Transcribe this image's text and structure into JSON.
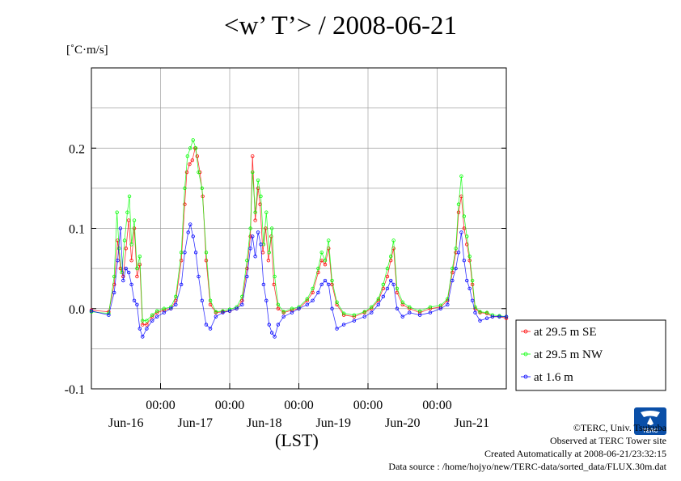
{
  "title": "<w’ T’> / 2008-06-21",
  "unit_label": "[˚C·m/s]",
  "x_axis_label": "(LST)",
  "credits": {
    "copyright": "©TERC, Univ. Tsukuba",
    "observed": "Observed at TERC Tower site",
    "created": "Created Automatically at 2008-06-21/23:32:15",
    "source": "Data source : /home/hojyo/new/TERC-data/sorted_data/FLUX.30m.dat"
  },
  "logo": {
    "text": "TERC",
    "color": "#0a4fa8"
  },
  "colors": {
    "se": "#ff0000",
    "nw": "#00ff00",
    "low": "#0000ff",
    "grid": "#a0a0a0"
  },
  "chart_data": {
    "type": "line",
    "title": "<w’ T’> / 2008-06-21",
    "ylabel": "[˚C·m/s]",
    "xlabel": "(LST)",
    "xlim_days": [
      0,
      6
    ],
    "ylim": [
      -0.1,
      0.3
    ],
    "yticks": [
      -0.1,
      0.0,
      0.1,
      0.2
    ],
    "ytick_labels": [
      "-0.1",
      "0.0",
      "0.1",
      "0.2"
    ],
    "xtick_time_labels": [
      "00:00",
      "00:00",
      "00:00",
      "00:00",
      "00:00"
    ],
    "xtick_date_labels": [
      "Jun-16",
      "Jun-17",
      "Jun-18",
      "Jun-19",
      "Jun-20",
      "Jun-21"
    ],
    "grid": true,
    "legend_position": "right-bottom, outside plot",
    "series": [
      {
        "name": "at 29.5 m SE",
        "points": [
          [
            0.0,
            -0.002
          ],
          [
            0.25,
            -0.004
          ],
          [
            0.33,
            0.03
          ],
          [
            0.38,
            0.085
          ],
          [
            0.42,
            0.05
          ],
          [
            0.46,
            0.04
          ],
          [
            0.5,
            0.075
          ],
          [
            0.54,
            0.11
          ],
          [
            0.58,
            0.06
          ],
          [
            0.62,
            0.1
          ],
          [
            0.66,
            0.04
          ],
          [
            0.7,
            0.055
          ],
          [
            0.74,
            -0.02
          ],
          [
            0.8,
            -0.02
          ],
          [
            0.88,
            -0.01
          ],
          [
            0.95,
            -0.005
          ],
          [
            1.05,
            -0.002
          ],
          [
            1.15,
            0.0
          ],
          [
            1.22,
            0.01
          ],
          [
            1.3,
            0.06
          ],
          [
            1.35,
            0.13
          ],
          [
            1.38,
            0.17
          ],
          [
            1.42,
            0.18
          ],
          [
            1.46,
            0.185
          ],
          [
            1.5,
            0.2
          ],
          [
            1.53,
            0.19
          ],
          [
            1.57,
            0.17
          ],
          [
            1.61,
            0.14
          ],
          [
            1.66,
            0.06
          ],
          [
            1.72,
            0.005
          ],
          [
            1.8,
            -0.005
          ],
          [
            1.9,
            -0.004
          ],
          [
            2.0,
            -0.003
          ],
          [
            2.1,
            0.0
          ],
          [
            2.18,
            0.01
          ],
          [
            2.25,
            0.05
          ],
          [
            2.3,
            0.09
          ],
          [
            2.33,
            0.19
          ],
          [
            2.37,
            0.11
          ],
          [
            2.41,
            0.15
          ],
          [
            2.44,
            0.13
          ],
          [
            2.48,
            0.07
          ],
          [
            2.52,
            0.1
          ],
          [
            2.56,
            0.06
          ],
          [
            2.6,
            0.09
          ],
          [
            2.64,
            0.03
          ],
          [
            2.7,
            0.0
          ],
          [
            2.78,
            -0.005
          ],
          [
            2.9,
            -0.002
          ],
          [
            3.0,
            0.0
          ],
          [
            3.12,
            0.01
          ],
          [
            3.2,
            0.02
          ],
          [
            3.28,
            0.045
          ],
          [
            3.33,
            0.06
          ],
          [
            3.38,
            0.055
          ],
          [
            3.43,
            0.075
          ],
          [
            3.48,
            0.03
          ],
          [
            3.55,
            0.005
          ],
          [
            3.65,
            -0.008
          ],
          [
            3.8,
            -0.01
          ],
          [
            3.95,
            -0.005
          ],
          [
            4.05,
            0.0
          ],
          [
            4.15,
            0.01
          ],
          [
            4.22,
            0.025
          ],
          [
            4.28,
            0.04
          ],
          [
            4.33,
            0.06
          ],
          [
            4.37,
            0.075
          ],
          [
            4.42,
            0.02
          ],
          [
            4.5,
            0.005
          ],
          [
            4.6,
            0.0
          ],
          [
            4.75,
            -0.005
          ],
          [
            4.9,
            0.0
          ],
          [
            5.05,
            0.002
          ],
          [
            5.15,
            0.01
          ],
          [
            5.22,
            0.045
          ],
          [
            5.27,
            0.07
          ],
          [
            5.31,
            0.12
          ],
          [
            5.35,
            0.14
          ],
          [
            5.39,
            0.1
          ],
          [
            5.43,
            0.08
          ],
          [
            5.47,
            0.06
          ],
          [
            5.51,
            0.03
          ],
          [
            5.55,
            0.0
          ],
          [
            5.62,
            -0.005
          ],
          [
            5.72,
            -0.006
          ],
          [
            5.8,
            -0.01
          ],
          [
            5.9,
            -0.01
          ],
          [
            6.0,
            -0.012
          ]
        ]
      },
      {
        "name": "at 29.5 m NW",
        "points": [
          [
            0.0,
            -0.004
          ],
          [
            0.25,
            -0.006
          ],
          [
            0.33,
            0.04
          ],
          [
            0.37,
            0.12
          ],
          [
            0.4,
            0.075
          ],
          [
            0.44,
            0.045
          ],
          [
            0.48,
            0.085
          ],
          [
            0.52,
            0.12
          ],
          [
            0.55,
            0.14
          ],
          [
            0.58,
            0.08
          ],
          [
            0.62,
            0.11
          ],
          [
            0.66,
            0.05
          ],
          [
            0.7,
            0.065
          ],
          [
            0.74,
            -0.015
          ],
          [
            0.8,
            -0.015
          ],
          [
            0.88,
            -0.008
          ],
          [
            0.95,
            -0.003
          ],
          [
            1.05,
            0.0
          ],
          [
            1.15,
            0.002
          ],
          [
            1.22,
            0.015
          ],
          [
            1.3,
            0.07
          ],
          [
            1.35,
            0.15
          ],
          [
            1.39,
            0.19
          ],
          [
            1.43,
            0.2
          ],
          [
            1.47,
            0.21
          ],
          [
            1.51,
            0.2
          ],
          [
            1.55,
            0.17
          ],
          [
            1.6,
            0.15
          ],
          [
            1.66,
            0.07
          ],
          [
            1.72,
            0.01
          ],
          [
            1.8,
            -0.004
          ],
          [
            1.9,
            -0.003
          ],
          [
            2.0,
            -0.001
          ],
          [
            2.1,
            0.002
          ],
          [
            2.18,
            0.015
          ],
          [
            2.25,
            0.06
          ],
          [
            2.3,
            0.1
          ],
          [
            2.33,
            0.17
          ],
          [
            2.37,
            0.12
          ],
          [
            2.41,
            0.16
          ],
          [
            2.45,
            0.14
          ],
          [
            2.49,
            0.08
          ],
          [
            2.53,
            0.12
          ],
          [
            2.57,
            0.07
          ],
          [
            2.61,
            0.1
          ],
          [
            2.65,
            0.04
          ],
          [
            2.7,
            0.005
          ],
          [
            2.78,
            -0.004
          ],
          [
            2.9,
            0.0
          ],
          [
            3.0,
            0.002
          ],
          [
            3.12,
            0.012
          ],
          [
            3.2,
            0.025
          ],
          [
            3.28,
            0.05
          ],
          [
            3.33,
            0.07
          ],
          [
            3.38,
            0.06
          ],
          [
            3.43,
            0.085
          ],
          [
            3.48,
            0.035
          ],
          [
            3.55,
            0.008
          ],
          [
            3.65,
            -0.006
          ],
          [
            3.8,
            -0.008
          ],
          [
            3.95,
            -0.004
          ],
          [
            4.05,
            0.002
          ],
          [
            4.15,
            0.012
          ],
          [
            4.22,
            0.03
          ],
          [
            4.28,
            0.05
          ],
          [
            4.33,
            0.065
          ],
          [
            4.37,
            0.085
          ],
          [
            4.42,
            0.025
          ],
          [
            4.5,
            0.008
          ],
          [
            4.6,
            0.002
          ],
          [
            4.75,
            -0.003
          ],
          [
            4.9,
            0.002
          ],
          [
            5.05,
            0.004
          ],
          [
            5.15,
            0.012
          ],
          [
            5.22,
            0.05
          ],
          [
            5.27,
            0.075
          ],
          [
            5.31,
            0.13
          ],
          [
            5.35,
            0.165
          ],
          [
            5.39,
            0.115
          ],
          [
            5.43,
            0.09
          ],
          [
            5.47,
            0.065
          ],
          [
            5.51,
            0.035
          ],
          [
            5.55,
            0.002
          ],
          [
            5.62,
            -0.004
          ],
          [
            5.72,
            -0.005
          ],
          [
            5.8,
            -0.008
          ],
          [
            5.9,
            -0.009
          ],
          [
            6.0,
            -0.01
          ]
        ]
      },
      {
        "name": "at 1.6 m",
        "points": [
          [
            0.0,
            -0.003
          ],
          [
            0.25,
            -0.008
          ],
          [
            0.33,
            0.02
          ],
          [
            0.38,
            0.06
          ],
          [
            0.42,
            0.1
          ],
          [
            0.46,
            0.035
          ],
          [
            0.5,
            0.05
          ],
          [
            0.54,
            0.045
          ],
          [
            0.58,
            0.03
          ],
          [
            0.62,
            0.01
          ],
          [
            0.66,
            0.005
          ],
          [
            0.7,
            -0.025
          ],
          [
            0.74,
            -0.035
          ],
          [
            0.8,
            -0.025
          ],
          [
            0.88,
            -0.015
          ],
          [
            0.95,
            -0.01
          ],
          [
            1.05,
            -0.005
          ],
          [
            1.15,
            0.0
          ],
          [
            1.22,
            0.005
          ],
          [
            1.3,
            0.03
          ],
          [
            1.35,
            0.07
          ],
          [
            1.4,
            0.095
          ],
          [
            1.43,
            0.105
          ],
          [
            1.47,
            0.09
          ],
          [
            1.51,
            0.07
          ],
          [
            1.55,
            0.04
          ],
          [
            1.6,
            0.01
          ],
          [
            1.66,
            -0.02
          ],
          [
            1.72,
            -0.025
          ],
          [
            1.8,
            -0.01
          ],
          [
            1.9,
            -0.005
          ],
          [
            2.0,
            -0.003
          ],
          [
            2.1,
            0.0
          ],
          [
            2.18,
            0.005
          ],
          [
            2.25,
            0.04
          ],
          [
            2.3,
            0.075
          ],
          [
            2.33,
            0.09
          ],
          [
            2.37,
            0.065
          ],
          [
            2.41,
            0.095
          ],
          [
            2.45,
            0.08
          ],
          [
            2.49,
            0.03
          ],
          [
            2.53,
            0.01
          ],
          [
            2.57,
            -0.02
          ],
          [
            2.61,
            -0.03
          ],
          [
            2.65,
            -0.035
          ],
          [
            2.7,
            -0.02
          ],
          [
            2.78,
            -0.01
          ],
          [
            2.9,
            -0.005
          ],
          [
            3.0,
            0.0
          ],
          [
            3.12,
            0.005
          ],
          [
            3.2,
            0.01
          ],
          [
            3.28,
            0.02
          ],
          [
            3.33,
            0.03
          ],
          [
            3.38,
            0.035
          ],
          [
            3.43,
            0.03
          ],
          [
            3.48,
            0.0
          ],
          [
            3.55,
            -0.025
          ],
          [
            3.65,
            -0.02
          ],
          [
            3.8,
            -0.015
          ],
          [
            3.95,
            -0.01
          ],
          [
            4.05,
            -0.005
          ],
          [
            4.15,
            0.005
          ],
          [
            4.22,
            0.015
          ],
          [
            4.28,
            0.025
          ],
          [
            4.33,
            0.035
          ],
          [
            4.37,
            0.03
          ],
          [
            4.42,
            0.0
          ],
          [
            4.5,
            -0.01
          ],
          [
            4.6,
            -0.005
          ],
          [
            4.75,
            -0.008
          ],
          [
            4.9,
            -0.005
          ],
          [
            5.05,
            0.0
          ],
          [
            5.15,
            0.005
          ],
          [
            5.22,
            0.035
          ],
          [
            5.27,
            0.05
          ],
          [
            5.31,
            0.07
          ],
          [
            5.35,
            0.095
          ],
          [
            5.39,
            0.06
          ],
          [
            5.43,
            0.035
          ],
          [
            5.47,
            0.025
          ],
          [
            5.51,
            0.01
          ],
          [
            5.55,
            -0.005
          ],
          [
            5.62,
            -0.015
          ],
          [
            5.72,
            -0.012
          ],
          [
            5.8,
            -0.01
          ],
          [
            5.9,
            -0.01
          ],
          [
            6.0,
            -0.01
          ]
        ]
      }
    ]
  }
}
